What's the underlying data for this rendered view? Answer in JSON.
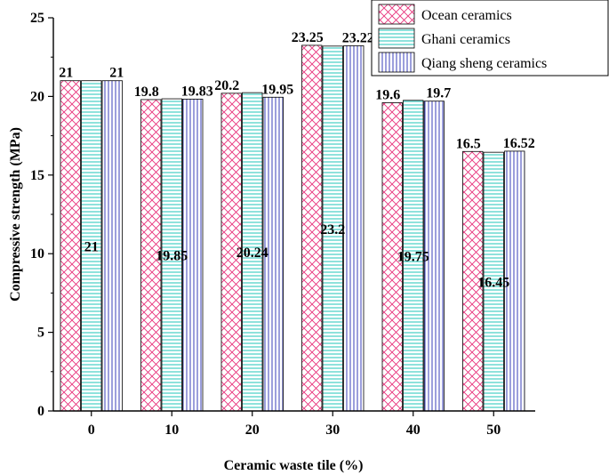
{
  "chart_data": {
    "type": "bar",
    "title": "",
    "xlabel": "Ceramic waste tile (%)",
    "ylabel": "Compressive strength (MPa)",
    "ylim": [
      0,
      25
    ],
    "yticks": [
      0,
      5,
      10,
      15,
      20,
      25
    ],
    "grid": false,
    "legend_position": "top-right",
    "categories": [
      "0",
      "10",
      "20",
      "30",
      "40",
      "50"
    ],
    "series": [
      {
        "name": "Ocean ceramics",
        "values": [
          21,
          19.8,
          20.2,
          23.25,
          19.6,
          16.5
        ],
        "labels": [
          "21",
          "19.8",
          "20.2",
          "23.25",
          "19.6",
          "16.5"
        ],
        "color": "#e8327c",
        "pattern": "crosshatch",
        "label_position": "top"
      },
      {
        "name": "Ghani ceramics",
        "values": [
          21,
          19.85,
          20.24,
          23.2,
          19.75,
          16.45
        ],
        "labels": [
          "21",
          "19.85",
          "20.24",
          "23.2",
          "19.75",
          "16.45"
        ],
        "color": "#1fc6b8",
        "pattern": "horizontal",
        "label_position": "middle"
      },
      {
        "name": "Qiang sheng ceramics",
        "values": [
          21,
          19.83,
          19.95,
          23.22,
          19.7,
          16.52
        ],
        "labels": [
          "21",
          "19.83",
          "19.95",
          "23.22",
          "19.7",
          "16.52"
        ],
        "color": "#3a3fb8",
        "pattern": "vertical",
        "label_position": "top"
      }
    ]
  }
}
